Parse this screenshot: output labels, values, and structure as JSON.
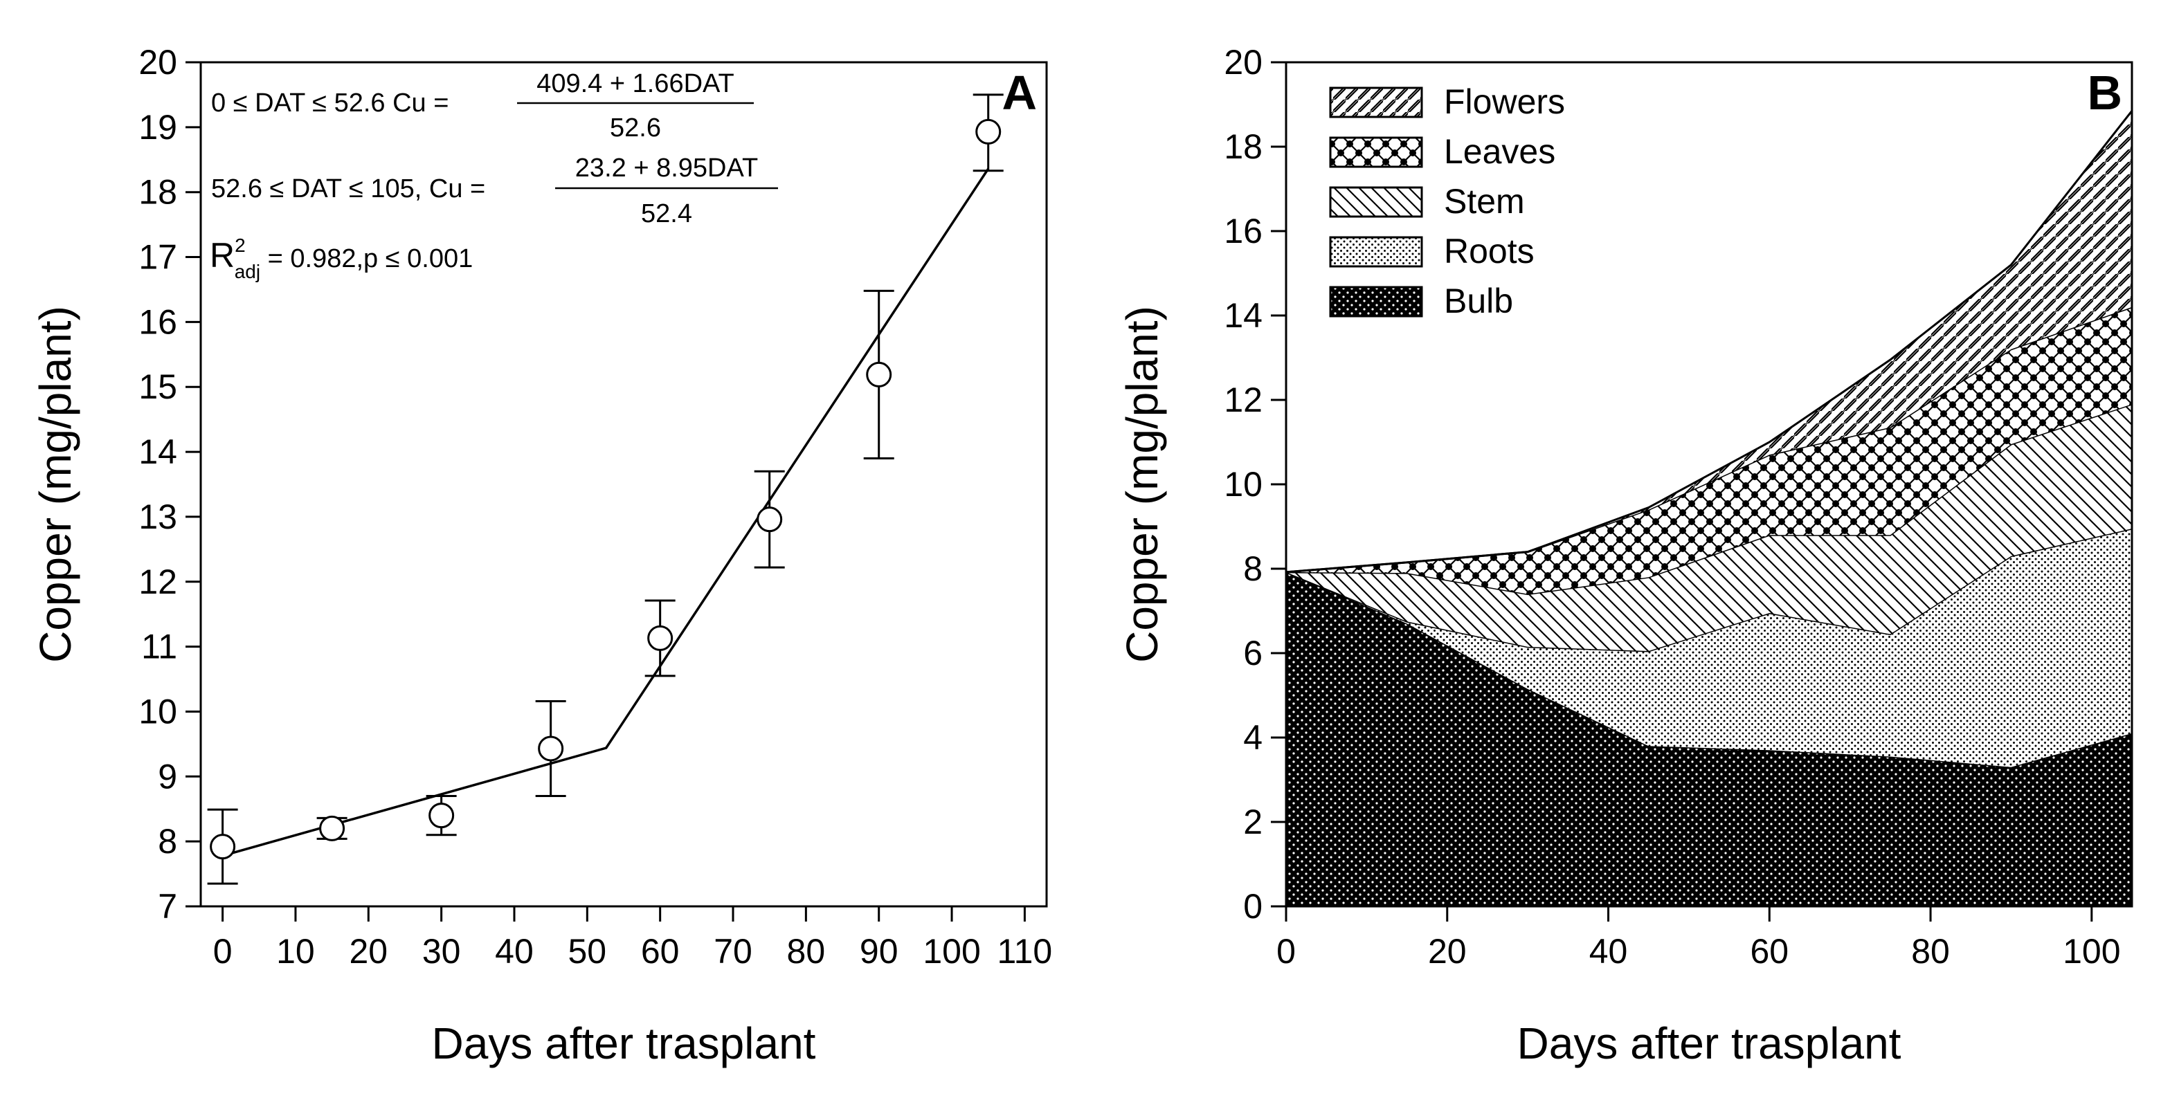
{
  "chart_data": [
    {
      "type": "line",
      "panel_label": "A",
      "xlabel": "Days after trasplant",
      "ylabel": "Copper (mg/plant)",
      "xlim": [
        -3,
        113
      ],
      "ylim": [
        7,
        20
      ],
      "xticks": [
        0,
        10,
        20,
        30,
        40,
        50,
        60,
        70,
        80,
        90,
        100,
        110
      ],
      "xtick_labels": [
        "0",
        "10",
        "20",
        "30",
        "40",
        "50",
        "60",
        "70",
        "80",
        "90",
        "100",
        "110"
      ],
      "yticks": [
        7,
        8,
        9,
        10,
        11,
        12,
        13,
        14,
        15,
        16,
        17,
        18,
        19,
        20
      ],
      "ytick_labels": [
        "7",
        "8",
        "9",
        "10",
        "11",
        "12",
        "13",
        "14",
        "15",
        "16",
        "17",
        "18",
        "19",
        "20"
      ],
      "points": {
        "x": [
          0,
          15,
          30,
          45,
          60,
          75,
          90,
          105
        ],
        "y": [
          7.92,
          8.2,
          8.4,
          9.43,
          11.13,
          12.96,
          15.19,
          18.93
        ],
        "err_low": [
          7.35,
          8.04,
          8.1,
          8.7,
          10.55,
          12.22,
          13.9,
          18.33
        ],
        "err_high": [
          8.49,
          8.36,
          8.7,
          10.16,
          11.71,
          13.7,
          16.48,
          19.5
        ]
      },
      "fit": {
        "x": [
          0,
          52.6,
          105
        ],
        "y": [
          7.78,
          9.44,
          18.36
        ]
      },
      "annotations": {
        "eq1_cond": "0 ≤ DAT ≤ 52.6   Cu =",
        "eq1_num": "409.4 + 1.66DAT",
        "eq1_den": "52.6",
        "eq2_cond": "52.6 ≤ DAT ≤ 105,   Cu =",
        "eq2_num": "23.2 + 8.95DAT",
        "eq2_den": "52.4",
        "r2_base": "R",
        "r2_sup": "2",
        "r2_sub": "adj",
        "r2_rest": " = 0.982,p ≤ 0.001"
      }
    },
    {
      "type": "area",
      "stacked": true,
      "panel_label": "B",
      "xlabel": "Days after trasplant",
      "ylabel": "Copper (mg/plant)",
      "xlim": [
        0,
        105
      ],
      "ylim": [
        0,
        20
      ],
      "xticks": [
        0,
        20,
        40,
        60,
        80,
        100
      ],
      "xtick_labels": [
        "0",
        "20",
        "40",
        "60",
        "80",
        "100"
      ],
      "yticks": [
        0,
        2,
        4,
        6,
        8,
        10,
        12,
        14,
        16,
        18,
        20
      ],
      "ytick_labels": [
        "0",
        "2",
        "4",
        "6",
        "8",
        "10",
        "12",
        "14",
        "16",
        "18",
        "20"
      ],
      "x": [
        0,
        15,
        30,
        45,
        60,
        75,
        90,
        105
      ],
      "series": [
        {
          "name": "Bulb",
          "values": [
            7.92,
            6.7,
            5.15,
            3.8,
            3.7,
            3.55,
            3.3,
            4.1
          ]
        },
        {
          "name": "Roots",
          "values": [
            0,
            0.05,
            1.0,
            2.25,
            3.25,
            2.9,
            5.0,
            4.85
          ]
        },
        {
          "name": "Stem",
          "values": [
            0,
            1.15,
            1.25,
            1.75,
            1.85,
            2.35,
            2.65,
            2.95
          ]
        },
        {
          "name": "Leaves",
          "values": [
            0,
            0.25,
            1.0,
            1.6,
            1.9,
            2.55,
            2.25,
            2.3
          ]
        },
        {
          "name": "Flowers",
          "values": [
            0,
            0,
            0,
            0.05,
            0.3,
            1.6,
            2.0,
            4.65
          ]
        }
      ],
      "legend": [
        "Flowers",
        "Leaves",
        "Stem",
        "Roots",
        "Bulb"
      ]
    }
  ]
}
